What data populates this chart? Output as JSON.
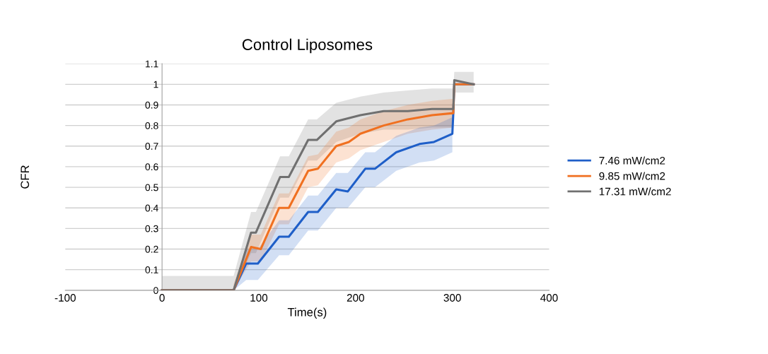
{
  "chart_data": {
    "type": "line",
    "title": "Control Liposomes",
    "xlabel": "Time(s)",
    "ylabel": "CFR",
    "xlim": [
      -100,
      400
    ],
    "xticks": [
      -100,
      0,
      100,
      200,
      300,
      400
    ],
    "ylim": [
      0,
      1.1
    ],
    "yticks": [
      0,
      0.1,
      0.2,
      0.3,
      0.4,
      0.5,
      0.6,
      0.7,
      0.8,
      0.9,
      1,
      1.1
    ],
    "grid": "y",
    "legend": "right",
    "line_style": "solid",
    "marker": "none",
    "series": [
      {
        "name": "7.46 mW/cm2",
        "color": "#1f5fc8",
        "x": [
          0,
          74,
          87,
          99,
          121,
          131,
          151,
          161,
          180,
          192,
          210,
          220,
          242,
          266,
          281,
          300,
          301,
          302,
          322
        ],
        "values": [
          0,
          0,
          0.13,
          0.13,
          0.26,
          0.26,
          0.38,
          0.38,
          0.49,
          0.48,
          0.59,
          0.59,
          0.67,
          0.71,
          0.72,
          0.76,
          0.86,
          1.0,
          1.0
        ],
        "lower": [
          null,
          0,
          0.05,
          0.05,
          0.17,
          0.17,
          0.29,
          0.29,
          0.4,
          0.4,
          0.5,
          0.5,
          0.58,
          0.62,
          0.63,
          0.67,
          null,
          null,
          null
        ],
        "upper": [
          null,
          0.02,
          0.2,
          0.2,
          0.34,
          0.34,
          0.46,
          0.46,
          0.57,
          0.57,
          0.67,
          0.67,
          0.75,
          0.79,
          0.8,
          0.84,
          null,
          null,
          null
        ]
      },
      {
        "name": "9.85 mW/cm2",
        "color": "#f07020",
        "x": [
          0,
          74,
          92,
          102,
          121,
          131,
          151,
          161,
          180,
          193,
          205,
          229,
          254,
          279,
          301,
          302,
          322
        ],
        "values": [
          0,
          0,
          0.21,
          0.2,
          0.4,
          0.4,
          0.58,
          0.59,
          0.7,
          0.72,
          0.76,
          0.8,
          0.83,
          0.85,
          0.86,
          1.0,
          1.0
        ],
        "lower": [
          null,
          0,
          0.14,
          0.14,
          0.32,
          0.32,
          0.5,
          0.51,
          0.62,
          0.64,
          0.68,
          0.72,
          0.76,
          0.78,
          0.79,
          null,
          null
        ],
        "upper": [
          null,
          0.03,
          0.27,
          0.27,
          0.47,
          0.47,
          0.65,
          0.66,
          0.77,
          0.79,
          0.83,
          0.87,
          0.9,
          0.92,
          0.93,
          null,
          null
        ]
      },
      {
        "name": "17.31 mW/cm2",
        "color": "#707070",
        "x": [
          0,
          74,
          92,
          97,
          122,
          131,
          151,
          160,
          180,
          205,
          229,
          254,
          279,
          301,
          302,
          322
        ],
        "values": [
          0,
          0,
          0.28,
          0.28,
          0.55,
          0.55,
          0.73,
          0.73,
          0.82,
          0.85,
          0.87,
          0.87,
          0.88,
          0.88,
          1.02,
          1.0
        ],
        "lower": [
          0,
          0,
          0.18,
          0.18,
          0.45,
          0.45,
          0.63,
          0.63,
          0.72,
          0.76,
          0.78,
          0.78,
          0.79,
          0.79,
          0.96,
          0.96
        ],
        "upper": [
          0.07,
          0.07,
          0.38,
          0.38,
          0.65,
          0.65,
          0.83,
          0.83,
          0.91,
          0.94,
          0.96,
          0.97,
          0.98,
          0.98,
          1.06,
          1.06
        ]
      }
    ]
  }
}
